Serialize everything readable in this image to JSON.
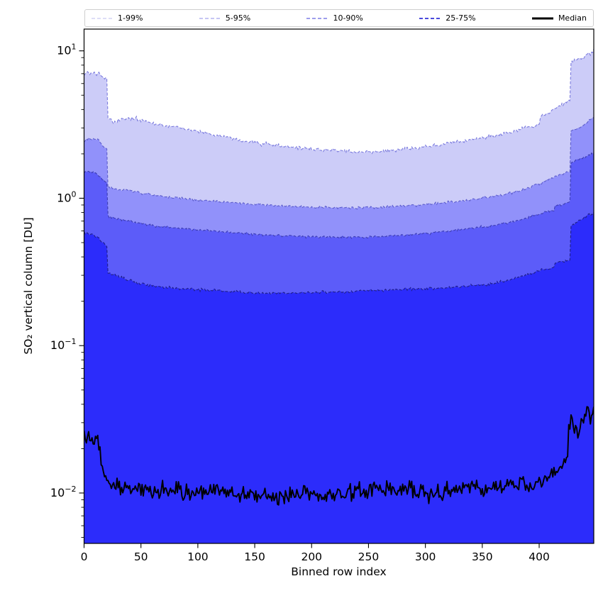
{
  "chart_data": {
    "type": "area",
    "title": "",
    "xlabel": "Binned row index",
    "ylabel": "SO₂ vertical column [DU]",
    "yscale": "log",
    "xlim": [
      0,
      448
    ],
    "ylim": [
      0.00455,
      14.05
    ],
    "grid": false,
    "legend_position": "top-expanded",
    "x_ticks": {
      "values": [
        0,
        50,
        100,
        150,
        200,
        250,
        300,
        350,
        400
      ],
      "labels": [
        "0",
        "50",
        "100",
        "150",
        "200",
        "250",
        "300",
        "350",
        "400"
      ]
    },
    "y_ticks": [
      {
        "value": 10,
        "base": "10",
        "exp": "1"
      },
      {
        "value": 1,
        "base": "10",
        "exp": "0"
      },
      {
        "value": 0.1,
        "base": "10",
        "exp": "−1"
      },
      {
        "value": 0.01,
        "base": "10",
        "exp": "−2"
      }
    ],
    "legend": {
      "entries": [
        {
          "label": "1-99%",
          "color": "#c9c9f2",
          "style": "dashed",
          "width": 1.3
        },
        {
          "label": "5-95%",
          "color": "#a4a4ee",
          "style": "dashed",
          "width": 1.3
        },
        {
          "label": "10-90%",
          "color": "#7d7de6",
          "style": "dashed",
          "width": 1.6
        },
        {
          "label": "25-75%",
          "color": "#4b4bdc",
          "style": "dashed",
          "width": 2.0
        },
        {
          "label": "Median",
          "color": "#000000",
          "style": "solid",
          "width": 3.0
        }
      ]
    },
    "frame_color": "#000000",
    "noise_seed": 1337,
    "x_count": 449,
    "bands": [
      {
        "name": "upper-99th-percentile",
        "legend": "1-99%",
        "fill": "#ccccf8",
        "edge": "#7b7bdd",
        "noise_log10": 0.02,
        "points": [
          [
            0,
            6.7
          ],
          [
            2,
            7.1
          ],
          [
            5,
            6.9
          ],
          [
            8,
            7.25
          ],
          [
            11,
            6.9
          ],
          [
            14,
            7.05
          ],
          [
            17,
            6.5
          ],
          [
            20,
            6.35
          ],
          [
            21,
            3.45
          ],
          [
            26,
            3.3
          ],
          [
            35,
            3.45
          ],
          [
            45,
            3.5
          ],
          [
            55,
            3.3
          ],
          [
            70,
            3.1
          ],
          [
            85,
            3.0
          ],
          [
            100,
            2.85
          ],
          [
            120,
            2.65
          ],
          [
            140,
            2.45
          ],
          [
            165,
            2.3
          ],
          [
            190,
            2.2
          ],
          [
            215,
            2.12
          ],
          [
            240,
            2.07
          ],
          [
            265,
            2.08
          ],
          [
            290,
            2.18
          ],
          [
            315,
            2.32
          ],
          [
            340,
            2.5
          ],
          [
            360,
            2.65
          ],
          [
            378,
            2.85
          ],
          [
            395,
            3.1
          ],
          [
            400,
            3.2
          ],
          [
            402,
            3.6
          ],
          [
            410,
            3.9
          ],
          [
            418,
            4.25
          ],
          [
            427,
            4.6
          ],
          [
            428,
            8.3
          ],
          [
            434,
            8.7
          ],
          [
            440,
            9.2
          ],
          [
            445,
            9.5
          ],
          [
            448,
            10.2
          ]
        ]
      },
      {
        "name": "upper-95th-percentile",
        "legend": "5-95%",
        "fill": "#9191fa",
        "edge": "#5d5dcc",
        "noise_log10": 0.013,
        "points": [
          [
            0,
            2.42
          ],
          [
            4,
            2.55
          ],
          [
            8,
            2.5
          ],
          [
            12,
            2.52
          ],
          [
            16,
            2.3
          ],
          [
            20,
            2.15
          ],
          [
            21,
            1.18
          ],
          [
            28,
            1.15
          ],
          [
            40,
            1.12
          ],
          [
            55,
            1.07
          ],
          [
            70,
            1.03
          ],
          [
            85,
            1.0
          ],
          [
            100,
            0.97
          ],
          [
            125,
            0.94
          ],
          [
            150,
            0.91
          ],
          [
            175,
            0.885
          ],
          [
            200,
            0.87
          ],
          [
            230,
            0.862
          ],
          [
            260,
            0.868
          ],
          [
            290,
            0.895
          ],
          [
            315,
            0.93
          ],
          [
            340,
            0.975
          ],
          [
            360,
            1.03
          ],
          [
            378,
            1.1
          ],
          [
            392,
            1.18
          ],
          [
            405,
            1.3
          ],
          [
            415,
            1.42
          ],
          [
            427,
            1.52
          ],
          [
            428,
            2.85
          ],
          [
            435,
            3.0
          ],
          [
            442,
            3.25
          ],
          [
            448,
            3.55
          ]
        ]
      },
      {
        "name": "upper-90th-percentile",
        "legend": "10-90%",
        "fill": "#5c5cf9",
        "edge": "#3d3db4",
        "noise_log10": 0.013,
        "points": [
          [
            0,
            1.52
          ],
          [
            6,
            1.5
          ],
          [
            12,
            1.47
          ],
          [
            16,
            1.35
          ],
          [
            20,
            1.28
          ],
          [
            21,
            0.755
          ],
          [
            28,
            0.73
          ],
          [
            45,
            0.685
          ],
          [
            65,
            0.645
          ],
          [
            85,
            0.625
          ],
          [
            100,
            0.61
          ],
          [
            130,
            0.585
          ],
          [
            160,
            0.565
          ],
          [
            190,
            0.55
          ],
          [
            220,
            0.543
          ],
          [
            250,
            0.545
          ],
          [
            280,
            0.56
          ],
          [
            310,
            0.585
          ],
          [
            335,
            0.615
          ],
          [
            360,
            0.655
          ],
          [
            380,
            0.7
          ],
          [
            395,
            0.76
          ],
          [
            405,
            0.8
          ],
          [
            413,
            0.835
          ],
          [
            414,
            0.89
          ],
          [
            422,
            0.92
          ],
          [
            427,
            0.95
          ],
          [
            428,
            1.75
          ],
          [
            436,
            1.85
          ],
          [
            443,
            1.95
          ],
          [
            448,
            2.03
          ]
        ]
      },
      {
        "name": "upper-75th-percentile",
        "legend": "25-75%",
        "fill": "#2c2cfb",
        "edge": "#1f1f8a",
        "noise_log10": 0.014,
        "points": [
          [
            0,
            0.585
          ],
          [
            6,
            0.57
          ],
          [
            12,
            0.545
          ],
          [
            16,
            0.5
          ],
          [
            20,
            0.462
          ],
          [
            21,
            0.312
          ],
          [
            28,
            0.298
          ],
          [
            45,
            0.268
          ],
          [
            65,
            0.252
          ],
          [
            85,
            0.244
          ],
          [
            100,
            0.24
          ],
          [
            130,
            0.232
          ],
          [
            160,
            0.227
          ],
          [
            190,
            0.228
          ],
          [
            220,
            0.231
          ],
          [
            250,
            0.236
          ],
          [
            280,
            0.24
          ],
          [
            310,
            0.245
          ],
          [
            335,
            0.252
          ],
          [
            358,
            0.263
          ],
          [
            375,
            0.28
          ],
          [
            390,
            0.305
          ],
          [
            402,
            0.328
          ],
          [
            413,
            0.338
          ],
          [
            414,
            0.362
          ],
          [
            422,
            0.372
          ],
          [
            427,
            0.382
          ],
          [
            428,
            0.65
          ],
          [
            435,
            0.7
          ],
          [
            442,
            0.75
          ],
          [
            448,
            0.795
          ]
        ]
      }
    ],
    "median": {
      "name": "median",
      "legend": "Median",
      "color": "#000000",
      "line_width": 1.9,
      "noise_log10": 0.09,
      "points": [
        [
          0,
          0.0262
        ],
        [
          2,
          0.022
        ],
        [
          4,
          0.0245
        ],
        [
          6,
          0.0228
        ],
        [
          8,
          0.0212
        ],
        [
          10,
          0.023
        ],
        [
          12,
          0.0222
        ],
        [
          14,
          0.018
        ],
        [
          16,
          0.0158
        ],
        [
          18,
          0.0132
        ],
        [
          20,
          0.012
        ],
        [
          22,
          0.0112
        ],
        [
          26,
          0.0106
        ],
        [
          35,
          0.011
        ],
        [
          50,
          0.0106
        ],
        [
          65,
          0.0104
        ],
        [
          80,
          0.0106
        ],
        [
          95,
          0.0103
        ],
        [
          110,
          0.0105
        ],
        [
          125,
          0.0103
        ],
        [
          140,
          0.0098
        ],
        [
          155,
          0.0093
        ],
        [
          168,
          0.0089
        ],
        [
          180,
          0.0096
        ],
        [
          192,
          0.0101
        ],
        [
          205,
          0.0097
        ],
        [
          215,
          0.0093
        ],
        [
          228,
          0.0099
        ],
        [
          240,
          0.0103
        ],
        [
          252,
          0.0106
        ],
        [
          265,
          0.0111
        ],
        [
          275,
          0.0108
        ],
        [
          288,
          0.0104
        ],
        [
          300,
          0.0101
        ],
        [
          312,
          0.01
        ],
        [
          325,
          0.0104
        ],
        [
          338,
          0.0107
        ],
        [
          350,
          0.0111
        ],
        [
          362,
          0.0107
        ],
        [
          374,
          0.0112
        ],
        [
          385,
          0.0116
        ],
        [
          394,
          0.0109
        ],
        [
          402,
          0.0125
        ],
        [
          410,
          0.0131
        ],
        [
          417,
          0.014
        ],
        [
          423,
          0.0158
        ],
        [
          425,
          0.0175
        ],
        [
          426,
          0.03
        ],
        [
          429,
          0.0318
        ],
        [
          432,
          0.0285
        ],
        [
          434,
          0.0256
        ],
        [
          437,
          0.03
        ],
        [
          440,
          0.033
        ],
        [
          443,
          0.0338
        ],
        [
          445,
          0.0308
        ],
        [
          447,
          0.036
        ],
        [
          448,
          0.0395
        ]
      ]
    }
  }
}
